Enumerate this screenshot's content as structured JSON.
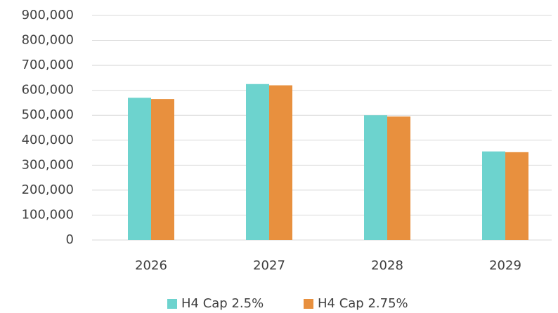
{
  "chart_data": {
    "type": "bar",
    "categories": [
      "2026",
      "2027",
      "2028",
      "2029"
    ],
    "series": [
      {
        "name": "H4 Cap 2.5%",
        "color": "#6dd3ce",
        "values": [
          570000,
          625000,
          500000,
          355000
        ]
      },
      {
        "name": "H4 Cap 2.75%",
        "color": "#e8903e",
        "values": [
          565000,
          620000,
          495000,
          352000
        ]
      }
    ],
    "ylim": [
      0,
      900000
    ],
    "yticks": [
      0,
      {
        "value": 100000,
        "label": "100,000"
      },
      {
        "value": 200000,
        "label": "200,000"
      },
      {
        "value": 300000,
        "label": "300,000"
      },
      {
        "value": 400000,
        "label": "400,000"
      },
      {
        "value": 500000,
        "label": "500,000"
      },
      {
        "value": 600000,
        "label": "600,000"
      },
      {
        "value": 700000,
        "label": "700,000"
      },
      {
        "value": 800000,
        "label": "800,000"
      },
      {
        "value": 900000,
        "label": "900,000"
      }
    ],
    "grid": true,
    "legend": "bottom"
  }
}
